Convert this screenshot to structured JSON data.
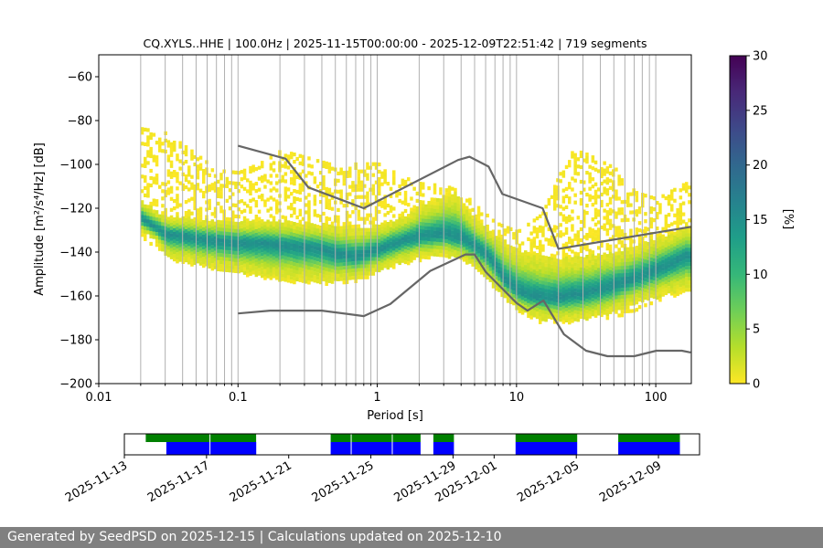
{
  "chart_data": [
    {
      "type": "heatmap",
      "title": "CQ.XYLS..HHE | 100.0Hz | 2025-11-15T00:00:00 - 2025-12-09T22:51:42 | 719 segments",
      "xlabel": "Period [s]",
      "ylabel": "Amplitude [m²/s⁴/Hz] [dB]",
      "xscale": "log",
      "xlim": [
        0.01,
        180
      ],
      "ylim": [
        -200,
        -50
      ],
      "xticks": [
        {
          "value": 0.01,
          "label": "0.01"
        },
        {
          "value": 0.1,
          "label": "0.1"
        },
        {
          "value": 1,
          "label": "1"
        },
        {
          "value": 10,
          "label": "10"
        },
        {
          "value": 100,
          "label": "100"
        }
      ],
      "yticks": [
        {
          "value": -200,
          "label": "−200"
        },
        {
          "value": -180,
          "label": "−180"
        },
        {
          "value": -160,
          "label": "−160"
        },
        {
          "value": -140,
          "label": "−140"
        },
        {
          "value": -120,
          "label": "−120"
        },
        {
          "value": -100,
          "label": "−100"
        },
        {
          "value": -80,
          "label": "−80"
        },
        {
          "value": -60,
          "label": "−60"
        }
      ],
      "grid": "vertical at period decades and sub-decades",
      "colorbar": {
        "label": "[%]",
        "range": [
          0,
          30
        ],
        "ticks": [
          {
            "value": 0,
            "label": "0"
          },
          {
            "value": 5,
            "label": "5"
          },
          {
            "value": 10,
            "label": "10"
          },
          {
            "value": 15,
            "label": "15"
          },
          {
            "value": 20,
            "label": "20"
          },
          {
            "value": 25,
            "label": "25"
          },
          {
            "value": 30,
            "label": "30"
          }
        ],
        "colors": [
          "#fde725",
          "#b5de2b",
          "#6ece58",
          "#35b779",
          "#1f9e89",
          "#26828e",
          "#31688e",
          "#3e4989",
          "#482878",
          "#440154"
        ]
      },
      "mode_curve": {
        "x": [
          0.02,
          0.025,
          0.03,
          0.04,
          0.05,
          0.07,
          0.1,
          0.15,
          0.2,
          0.3,
          0.4,
          0.5,
          0.7,
          0.8,
          1.0,
          1.5,
          2,
          3,
          4,
          5,
          6,
          7,
          8,
          10,
          12,
          15,
          20,
          30,
          40,
          50,
          70,
          100,
          130,
          160
        ],
        "y": [
          -124,
          -128,
          -131,
          -132,
          -133,
          -134,
          -135,
          -135,
          -136,
          -137,
          -138,
          -140,
          -141,
          -140,
          -138,
          -134,
          -132,
          -131,
          -133,
          -137,
          -140,
          -146,
          -152,
          -157,
          -159,
          -160,
          -160,
          -158,
          -156,
          -154,
          -151,
          -147,
          -144,
          -141
        ]
      },
      "spread_upper": {
        "x": [
          0.02,
          0.025,
          0.03,
          0.05,
          0.07,
          0.1,
          0.2,
          0.3,
          0.5,
          0.7,
          1.0,
          1.5,
          2,
          3,
          3.5,
          4,
          5,
          6,
          8,
          10,
          15,
          20,
          30,
          50,
          70,
          100,
          130,
          160
        ],
        "y": [
          -116,
          -120,
          -123,
          -124,
          -125,
          -125,
          -125,
          -126,
          -127,
          -128,
          -127,
          -123,
          -118,
          -113,
          -112,
          -116,
          -124,
          -128,
          -134,
          -138,
          -141,
          -142,
          -141,
          -139,
          -136,
          -133,
          -130,
          -128
        ]
      },
      "spread_lower": {
        "x": [
          0.02,
          0.025,
          0.03,
          0.05,
          0.07,
          0.1,
          0.2,
          0.3,
          0.5,
          0.7,
          1.0,
          1.5,
          2,
          3,
          4,
          5,
          6,
          8,
          10,
          15,
          20,
          30,
          50,
          70,
          100,
          130,
          160
        ],
        "y": [
          -130,
          -134,
          -142,
          -145,
          -147,
          -149,
          -152,
          -153,
          -153,
          -152,
          -148,
          -144,
          -142,
          -141,
          -143,
          -147,
          -152,
          -160,
          -166,
          -170,
          -171,
          -170,
          -167,
          -163,
          -160,
          -158,
          -157
        ]
      },
      "outer_upper": {
        "x": [
          0.02,
          0.03,
          0.05,
          0.07,
          0.1,
          0.15,
          0.2,
          0.3,
          0.5,
          0.7,
          1.0,
          1.5,
          2,
          3,
          4,
          5,
          7,
          10,
          15,
          20,
          25,
          30,
          50,
          70,
          100,
          160
        ],
        "y": [
          -83,
          -85,
          -95,
          -102,
          -103,
          -98,
          -93,
          -96,
          -100,
          -99,
          -99,
          -105,
          -108,
          -109,
          -112,
          -118,
          -126,
          -130,
          -122,
          -104,
          -93,
          -94,
          -101,
          -112,
          -115,
          -108
        ]
      },
      "outer_lower": {
        "x": [
          0.02,
          0.03,
          0.05,
          0.07,
          0.1,
          0.2,
          0.3,
          0.5,
          0.7,
          1.0,
          2,
          3,
          4,
          5,
          7,
          10,
          15,
          20,
          30,
          50,
          70,
          100,
          160
        ],
        "y": [
          -132,
          -143,
          -146,
          -148,
          -149,
          -153,
          -154,
          -154,
          -153,
          -149,
          -143,
          -141,
          -143,
          -147,
          -158,
          -166,
          -172,
          -173,
          -171,
          -169,
          -166,
          -162,
          -158
        ]
      },
      "nhnm": {
        "x": [
          0.1,
          0.22,
          0.32,
          0.8,
          3.8,
          4.6,
          6.3,
          7.9,
          15.4,
          20,
          178
        ],
        "y": [
          -91.5,
          -97.4,
          -110.5,
          -120,
          -98,
          -96.5,
          -101,
          -113.5,
          -120,
          -138.5,
          -128.5
        ]
      },
      "nlnm": {
        "x": [
          0.1,
          0.17,
          0.4,
          0.8,
          1.24,
          2.4,
          4.3,
          5,
          6,
          10,
          12,
          15.6,
          21.9,
          31.6,
          45,
          70,
          101,
          154,
          178
        ],
        "y": [
          -168,
          -166.7,
          -166.7,
          -169.2,
          -163.7,
          -148.6,
          -141.1,
          -141.1,
          -149,
          -163.2,
          -166.7,
          -162.1,
          -177.5,
          -185,
          -187.5,
          -187.5,
          -185,
          -185,
          -185.8
        ]
      }
    },
    {
      "type": "timeline",
      "xlim": [
        "2025-11-13",
        "2025-12-11"
      ],
      "xticks": [
        "2025-11-13",
        "2025-11-17",
        "2025-11-21",
        "2025-11-25",
        "2025-11-29",
        "2025-12-01",
        "2025-12-05",
        "2025-12-09"
      ],
      "rows": [
        {
          "role": "upper",
          "color": "#008000",
          "spans": [
            [
              "2025-11-14T01:00",
              "2025-11-19T10:00"
            ],
            [
              "2025-11-23T01:00",
              "2025-11-27T10:00"
            ],
            [
              "2025-11-28T01:00",
              "2025-11-29T01:00"
            ],
            [
              "2025-12-02T01:00",
              "2025-12-05T01:00"
            ],
            [
              "2025-12-07T01:00",
              "2025-12-10T01:00"
            ]
          ]
        },
        {
          "role": "lower",
          "color": "#0000ff",
          "spans": [
            [
              "2025-11-15T01:00",
              "2025-11-19T10:00"
            ],
            [
              "2025-11-23T01:00",
              "2025-11-27T10:00"
            ],
            [
              "2025-11-28T01:00",
              "2025-11-29T01:00"
            ],
            [
              "2025-12-02T01:00",
              "2025-12-05T01:00"
            ],
            [
              "2025-12-07T01:00",
              "2025-12-10T01:00"
            ]
          ]
        }
      ],
      "gaps": [
        "2025-11-17T04:00",
        "2025-11-24T01:00",
        "2025-11-26T01:00"
      ]
    }
  ],
  "footer": {
    "text": "Generated by SeedPSD on 2025-12-15 | Calculations updated on 2025-12-10"
  }
}
